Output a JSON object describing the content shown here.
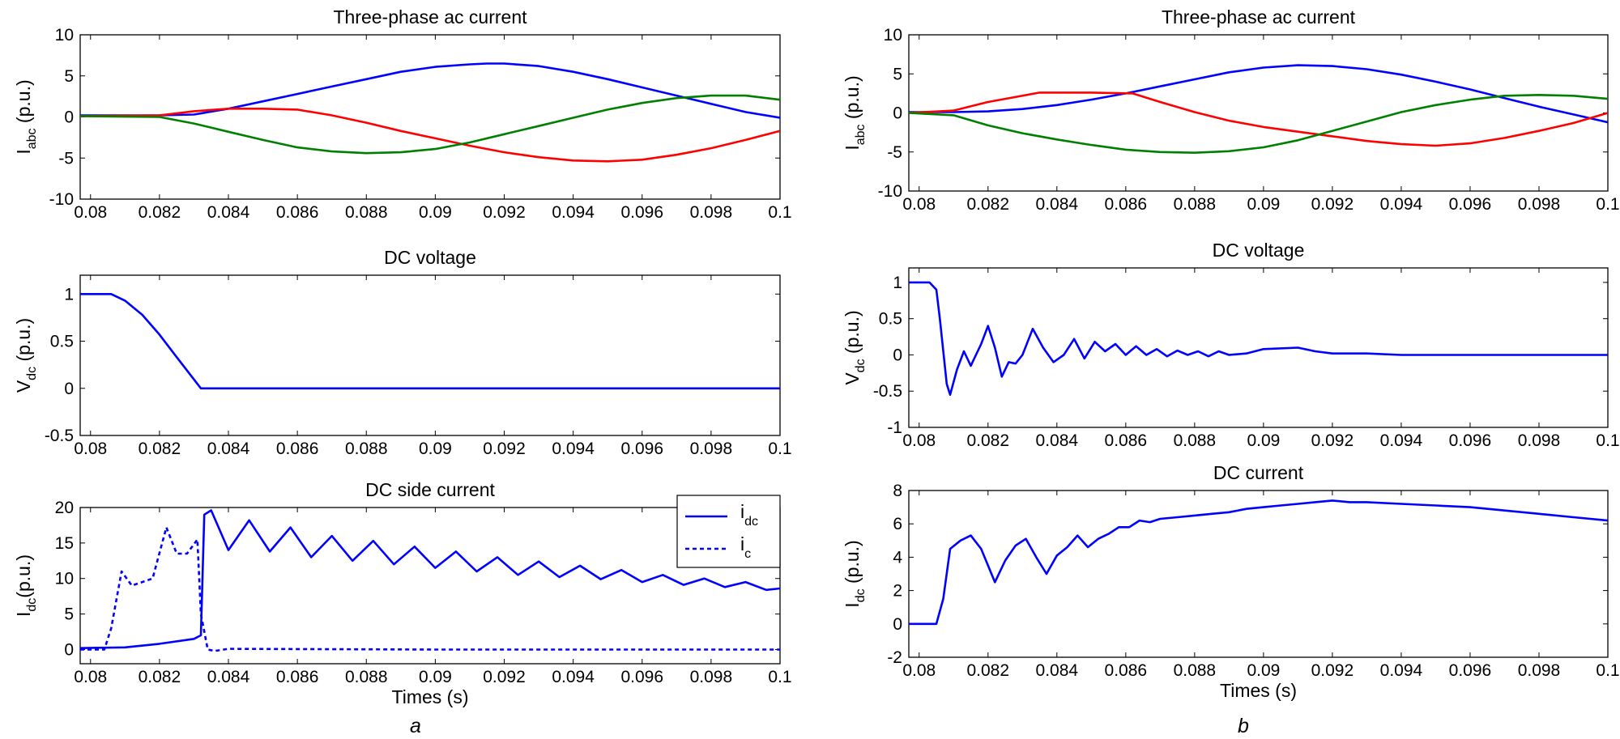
{
  "figure": {
    "panel_labels": [
      "a",
      "b"
    ]
  },
  "chart_data": [
    {
      "id": "a1",
      "type": "line",
      "panel": "a",
      "title": "Three-phase ac current",
      "ylabel": "I",
      "ylabel_sub": "abc",
      "ylabel_unit": " (p.u.)",
      "xlabel": "",
      "xlim": [
        0.0797,
        0.1
      ],
      "ylim": [
        -10,
        10
      ],
      "xticks": [
        "0.08",
        "0.082",
        "0.084",
        "0.086",
        "0.088",
        "0.09",
        "0.092",
        "0.094",
        "0.096",
        "0.098",
        "0.1"
      ],
      "yticks": [
        "-10",
        "-5",
        "0",
        "5",
        "10"
      ],
      "grid": false,
      "legend": null,
      "series": [
        {
          "color": "#0000ff",
          "dash": "",
          "x": [
            0.0797,
            0.082,
            0.083,
            0.084,
            0.085,
            0.086,
            0.087,
            0.088,
            0.089,
            0.09,
            0.091,
            0.0915,
            0.092,
            0.093,
            0.094,
            0.095,
            0.096,
            0.097,
            0.098,
            0.099,
            0.1
          ],
          "y": [
            0.2,
            0.2,
            0.3,
            1.0,
            1.9,
            2.8,
            3.7,
            4.6,
            5.5,
            6.1,
            6.4,
            6.5,
            6.5,
            6.2,
            5.5,
            4.6,
            3.6,
            2.6,
            1.6,
            0.6,
            -0.1
          ]
        },
        {
          "color": "#ff0000",
          "dash": "",
          "x": [
            0.0797,
            0.082,
            0.083,
            0.084,
            0.085,
            0.086,
            0.087,
            0.088,
            0.089,
            0.09,
            0.091,
            0.092,
            0.093,
            0.094,
            0.095,
            0.096,
            0.097,
            0.098,
            0.099,
            0.1
          ],
          "y": [
            0.1,
            0.2,
            0.7,
            1.0,
            1.0,
            0.9,
            0.2,
            -0.7,
            -1.7,
            -2.6,
            -3.5,
            -4.3,
            -4.9,
            -5.3,
            -5.4,
            -5.2,
            -4.6,
            -3.8,
            -2.8,
            -1.7
          ]
        },
        {
          "color": "#008000",
          "dash": "",
          "x": [
            0.0797,
            0.082,
            0.083,
            0.084,
            0.085,
            0.086,
            0.087,
            0.088,
            0.089,
            0.09,
            0.091,
            0.092,
            0.093,
            0.094,
            0.095,
            0.096,
            0.097,
            0.098,
            0.099,
            0.1
          ],
          "y": [
            0.1,
            0.0,
            -0.8,
            -1.8,
            -2.8,
            -3.7,
            -4.2,
            -4.4,
            -4.3,
            -3.9,
            -3.1,
            -2.1,
            -1.1,
            -0.1,
            0.9,
            1.7,
            2.3,
            2.6,
            2.6,
            2.1
          ]
        }
      ]
    },
    {
      "id": "a2",
      "type": "line",
      "panel": "a",
      "title": "DC voltage",
      "ylabel": "V",
      "ylabel_sub": "dc",
      "ylabel_unit": " (p.u.)",
      "xlabel": "",
      "xlim": [
        0.0797,
        0.1
      ],
      "ylim": [
        -0.5,
        1.2
      ],
      "xticks": [
        "0.08",
        "0.082",
        "0.084",
        "0.086",
        "0.088",
        "0.09",
        "0.092",
        "0.094",
        "0.096",
        "0.098",
        "0.1"
      ],
      "yticks": [
        "-0.5",
        "0",
        "0.5",
        "1"
      ],
      "grid": false,
      "legend": null,
      "series": [
        {
          "color": "#0000ff",
          "dash": "",
          "x": [
            0.0797,
            0.0806,
            0.081,
            0.0815,
            0.082,
            0.0825,
            0.0832,
            0.0835,
            0.09,
            0.1
          ],
          "y": [
            1.0,
            1.0,
            0.93,
            0.78,
            0.57,
            0.33,
            0.0,
            0.0,
            0.0,
            0.0
          ]
        }
      ]
    },
    {
      "id": "a3",
      "type": "line",
      "panel": "a",
      "title": "DC side current",
      "ylabel": "I",
      "ylabel_sub": "dc",
      "ylabel_unit": "(p.u.)",
      "xlabel": "Times (s)",
      "xlim": [
        0.0797,
        0.1
      ],
      "ylim": [
        -2,
        20
      ],
      "xticks": [
        "0.08",
        "0.082",
        "0.084",
        "0.086",
        "0.088",
        "0.09",
        "0.092",
        "0.094",
        "0.096",
        "0.098",
        "0.1"
      ],
      "yticks": [
        "0",
        "5",
        "10",
        "15",
        "20"
      ],
      "grid": false,
      "legend": {
        "position": "top-right",
        "entries": [
          {
            "main": "i",
            "sub": "dc"
          },
          {
            "main": "i",
            "sub": "c"
          }
        ]
      },
      "series": [
        {
          "color": "#0000ff",
          "dash": "",
          "x": [
            0.0797,
            0.081,
            0.082,
            0.083,
            0.0832,
            0.0833,
            0.0835,
            0.084,
            0.0846,
            0.0852,
            0.0858,
            0.0864,
            0.087,
            0.0876,
            0.0882,
            0.0888,
            0.0894,
            0.09,
            0.0906,
            0.0912,
            0.0918,
            0.0924,
            0.093,
            0.0936,
            0.0942,
            0.0948,
            0.0954,
            0.096,
            0.0966,
            0.0972,
            0.0978,
            0.0984,
            0.099,
            0.0996,
            0.1
          ],
          "y": [
            0.2,
            0.3,
            0.8,
            1.5,
            2.0,
            19.0,
            19.6,
            14.0,
            18.2,
            13.8,
            17.2,
            13.0,
            16.0,
            12.5,
            15.3,
            12.0,
            14.5,
            11.5,
            13.8,
            11.0,
            13.0,
            10.5,
            12.4,
            10.2,
            11.8,
            9.9,
            11.2,
            9.5,
            10.5,
            9.1,
            10.0,
            8.8,
            9.5,
            8.4,
            8.6
          ]
        },
        {
          "color": "#0000ff",
          "dash": "5,4",
          "x": [
            0.0797,
            0.0804,
            0.0806,
            0.0809,
            0.0812,
            0.0815,
            0.0818,
            0.0822,
            0.0825,
            0.0828,
            0.0831,
            0.0832,
            0.0834,
            0.0836,
            0.084,
            0.09,
            0.1
          ],
          "y": [
            0.0,
            0.0,
            3.0,
            11.0,
            9.0,
            9.5,
            10.0,
            17.2,
            13.5,
            13.5,
            15.5,
            5.0,
            0.0,
            -0.2,
            0.1,
            0.0,
            0.0
          ]
        }
      ]
    },
    {
      "id": "b1",
      "type": "line",
      "panel": "b",
      "title": "Three-phase ac current",
      "ylabel": "I",
      "ylabel_sub": "abc",
      "ylabel_unit": " (p.u.)",
      "xlabel": "",
      "xlim": [
        0.0797,
        0.1
      ],
      "ylim": [
        -10,
        10
      ],
      "xticks": [
        "0.08",
        "0.082",
        "0.084",
        "0.086",
        "0.088",
        "0.09",
        "0.092",
        "0.094",
        "0.096",
        "0.098",
        "0.1"
      ],
      "yticks": [
        "-10",
        "-5",
        "0",
        "5",
        "10"
      ],
      "grid": false,
      "legend": null,
      "series": [
        {
          "color": "#0000ff",
          "dash": "",
          "x": [
            0.0797,
            0.081,
            0.082,
            0.083,
            0.084,
            0.085,
            0.086,
            0.087,
            0.088,
            0.089,
            0.09,
            0.091,
            0.092,
            0.093,
            0.094,
            0.095,
            0.096,
            0.097,
            0.098,
            0.099,
            0.1
          ],
          "y": [
            0.1,
            0.1,
            0.2,
            0.5,
            1.0,
            1.7,
            2.5,
            3.4,
            4.3,
            5.2,
            5.8,
            6.1,
            6.0,
            5.6,
            4.9,
            4.0,
            3.0,
            1.9,
            0.8,
            -0.2,
            -1.2
          ]
        },
        {
          "color": "#ff0000",
          "dash": "",
          "x": [
            0.0797,
            0.081,
            0.082,
            0.0835,
            0.085,
            0.0862,
            0.087,
            0.088,
            0.089,
            0.09,
            0.091,
            0.092,
            0.093,
            0.094,
            0.095,
            0.096,
            0.097,
            0.098,
            0.099,
            0.1
          ],
          "y": [
            0.0,
            0.3,
            1.4,
            2.6,
            2.6,
            2.5,
            1.4,
            0.1,
            -1.0,
            -1.8,
            -2.4,
            -3.0,
            -3.6,
            -4.0,
            -4.2,
            -3.9,
            -3.2,
            -2.3,
            -1.3,
            0.0
          ]
        },
        {
          "color": "#008000",
          "dash": "",
          "x": [
            0.0797,
            0.081,
            0.082,
            0.083,
            0.084,
            0.085,
            0.086,
            0.087,
            0.088,
            0.089,
            0.09,
            0.091,
            0.092,
            0.093,
            0.094,
            0.095,
            0.096,
            0.097,
            0.098,
            0.099,
            0.1
          ],
          "y": [
            0.0,
            -0.3,
            -1.6,
            -2.6,
            -3.4,
            -4.1,
            -4.7,
            -5.0,
            -5.1,
            -4.9,
            -4.4,
            -3.5,
            -2.3,
            -1.1,
            0.1,
            1.0,
            1.7,
            2.2,
            2.3,
            2.2,
            1.8
          ]
        }
      ]
    },
    {
      "id": "b2",
      "type": "line",
      "panel": "b",
      "title": "DC voltage",
      "ylabel": "V",
      "ylabel_sub": "dc",
      "ylabel_unit": " (p.u.)",
      "xlabel": "",
      "xlim": [
        0.0797,
        0.1
      ],
      "ylim": [
        -1,
        1.2
      ],
      "xticks": [
        "0.08",
        "0.082",
        "0.084",
        "0.086",
        "0.088",
        "0.09",
        "0.092",
        "0.094",
        "0.096",
        "0.098",
        "0.1"
      ],
      "yticks": [
        "-1",
        "-0.5",
        "0",
        "0.5",
        "1"
      ],
      "grid": false,
      "legend": null,
      "series": [
        {
          "color": "#0000ff",
          "dash": "",
          "x": [
            0.0797,
            0.0803,
            0.0805,
            0.0806,
            0.0808,
            0.0809,
            0.0811,
            0.0813,
            0.0815,
            0.0818,
            0.082,
            0.0822,
            0.0824,
            0.0826,
            0.0828,
            0.083,
            0.0833,
            0.0836,
            0.0839,
            0.0842,
            0.0845,
            0.0848,
            0.0851,
            0.0854,
            0.0857,
            0.086,
            0.0863,
            0.0866,
            0.0869,
            0.0872,
            0.0875,
            0.0878,
            0.0881,
            0.0884,
            0.0887,
            0.089,
            0.0895,
            0.09,
            0.091,
            0.0915,
            0.092,
            0.093,
            0.094,
            0.095,
            0.1
          ],
          "y": [
            1.0,
            1.0,
            0.9,
            0.5,
            -0.4,
            -0.55,
            -0.2,
            0.05,
            -0.15,
            0.15,
            0.4,
            0.1,
            -0.3,
            -0.1,
            -0.12,
            0.0,
            0.36,
            0.1,
            -0.1,
            0.0,
            0.22,
            -0.05,
            0.18,
            0.05,
            0.15,
            0.0,
            0.12,
            0.0,
            0.08,
            -0.02,
            0.06,
            0.0,
            0.05,
            -0.02,
            0.05,
            0.0,
            0.02,
            0.08,
            0.1,
            0.05,
            0.02,
            0.02,
            0.0,
            0.0,
            0.0
          ]
        }
      ]
    },
    {
      "id": "b3",
      "type": "line",
      "panel": "b",
      "title": "DC current",
      "ylabel": "I",
      "ylabel_sub": "dc",
      "ylabel_unit": " (p.u.)",
      "xlabel": "Times (s)",
      "xlim": [
        0.0797,
        0.1
      ],
      "ylim": [
        -2,
        8
      ],
      "xticks": [
        "0.08",
        "0.082",
        "0.084",
        "0.086",
        "0.088",
        "0.09",
        "0.092",
        "0.094",
        "0.096",
        "0.098",
        "0.1"
      ],
      "yticks": [
        "-2",
        "0",
        "2",
        "4",
        "6",
        "8"
      ],
      "grid": false,
      "legend": null,
      "series": [
        {
          "color": "#0000ff",
          "dash": "",
          "x": [
            0.0797,
            0.0805,
            0.0807,
            0.0809,
            0.0812,
            0.0815,
            0.0818,
            0.0822,
            0.0825,
            0.0828,
            0.0831,
            0.0834,
            0.0837,
            0.084,
            0.0843,
            0.0846,
            0.0849,
            0.0852,
            0.0855,
            0.0858,
            0.0861,
            0.0864,
            0.0867,
            0.087,
            0.0875,
            0.088,
            0.0885,
            0.089,
            0.0895,
            0.09,
            0.0905,
            0.091,
            0.0915,
            0.092,
            0.0925,
            0.093,
            0.094,
            0.095,
            0.096,
            0.097,
            0.098,
            0.099,
            0.1
          ],
          "y": [
            0.0,
            0.0,
            1.5,
            4.5,
            5.0,
            5.3,
            4.5,
            2.5,
            3.8,
            4.7,
            5.1,
            4.0,
            3.0,
            4.1,
            4.6,
            5.3,
            4.6,
            5.1,
            5.4,
            5.8,
            5.8,
            6.2,
            6.1,
            6.3,
            6.4,
            6.5,
            6.6,
            6.7,
            6.9,
            7.0,
            7.1,
            7.2,
            7.3,
            7.4,
            7.3,
            7.3,
            7.2,
            7.1,
            7.0,
            6.8,
            6.6,
            6.4,
            6.2
          ]
        }
      ]
    }
  ]
}
